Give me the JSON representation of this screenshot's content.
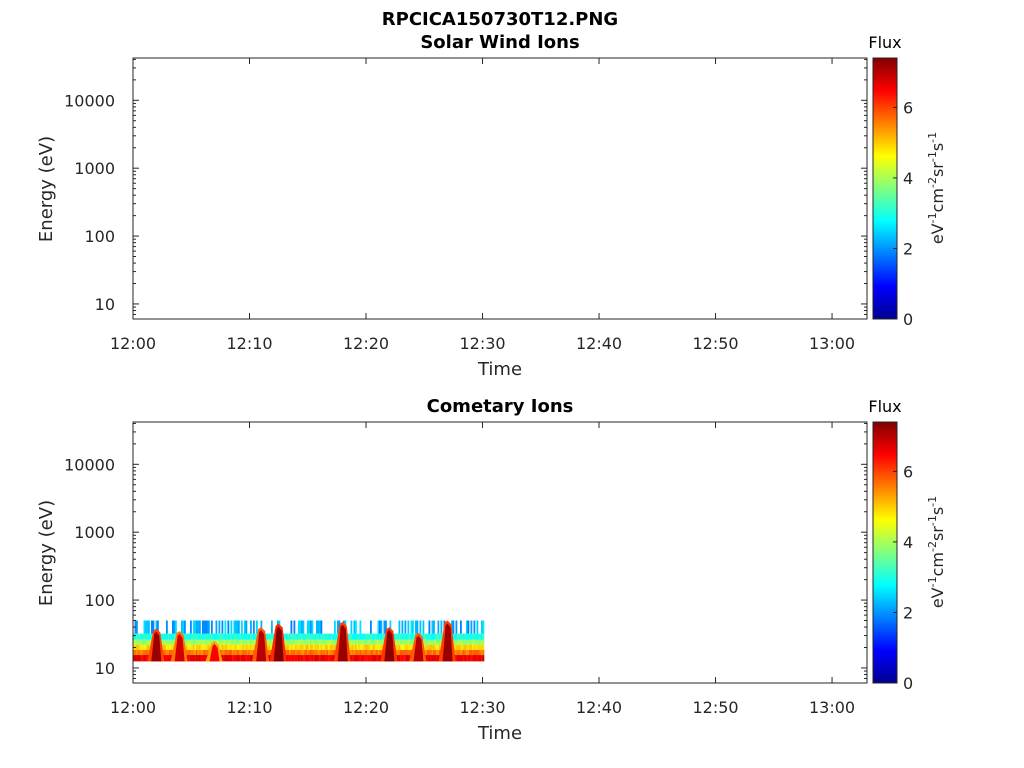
{
  "figure_title": "RPCICA150730T12.PNG",
  "chart_data": [
    {
      "type": "heatmap",
      "title": "Solar Wind Ions",
      "xlabel": "Time",
      "ylabel": "Energy (eV)",
      "y_scale": "log",
      "ylim": [
        6,
        42000
      ],
      "x_ticks": [
        "12:00",
        "12:10",
        "12:20",
        "12:30",
        "12:40",
        "12:50",
        "13:00"
      ],
      "xlim": [
        "12:00",
        "13:03"
      ],
      "y_ticks": [
        10,
        100,
        1000,
        10000
      ],
      "y_tick_labels": [
        "10",
        "100",
        "1000",
        "10000"
      ],
      "colorbar": {
        "title": "Flux",
        "label": "eV-1cm-2sr-1s-1",
        "label_parts": [
          "eV",
          "-1",
          "cm",
          "-2",
          "sr",
          "-1",
          "s",
          "-1"
        ],
        "range": [
          0,
          7.4
        ],
        "ticks": [
          "0",
          "2",
          "4",
          "6"
        ],
        "colormap": "jet"
      },
      "data_coverage": "none",
      "events": []
    },
    {
      "type": "heatmap",
      "title": "Cometary Ions",
      "xlabel": "Time",
      "ylabel": "Energy (eV)",
      "y_scale": "log",
      "ylim": [
        6,
        42000
      ],
      "x_ticks": [
        "12:00",
        "12:10",
        "12:20",
        "12:30",
        "12:40",
        "12:50",
        "13:00"
      ],
      "xlim": [
        "12:00",
        "13:03"
      ],
      "y_ticks": [
        10,
        100,
        1000,
        10000
      ],
      "y_tick_labels": [
        "10",
        "100",
        "1000",
        "10000"
      ],
      "colorbar": {
        "title": "Flux",
        "label": "eV-1cm-2sr-1s-1",
        "label_parts": [
          "eV",
          "-1",
          "cm",
          "-2",
          "sr",
          "-1",
          "s",
          "-1"
        ],
        "range": [
          0,
          7.4
        ],
        "ticks": [
          "0",
          "2",
          "4",
          "6"
        ],
        "colormap": "jet"
      },
      "data_coverage": {
        "start": "12:00",
        "end": "12:30"
      },
      "background_bands": [
        {
          "energy_low": 12.5,
          "energy_high": 15.5,
          "flux": 6.6
        },
        {
          "energy_low": 15.5,
          "energy_high": 18.5,
          "flux": 5.6
        },
        {
          "energy_low": 18.5,
          "energy_high": 22.0,
          "flux": 4.9
        },
        {
          "energy_low": 22.0,
          "energy_high": 26.0,
          "flux": 3.9
        },
        {
          "energy_low": 26.0,
          "energy_high": 32.0,
          "flux": 3.0
        },
        {
          "energy_low": 32.0,
          "energy_high": 50.0,
          "flux": 2.2
        }
      ],
      "events": [
        {
          "time": "12:02",
          "peak_energy": 38,
          "flux": 7.2
        },
        {
          "time": "12:04",
          "peak_energy": 35,
          "flux": 6.8
        },
        {
          "time": "12:07",
          "peak_energy": 25,
          "flux": 6.5
        },
        {
          "time": "12:11",
          "peak_energy": 40,
          "flux": 7.0
        },
        {
          "time": "12:12.5",
          "peak_energy": 45,
          "flux": 7.4
        },
        {
          "time": "12:18",
          "peak_energy": 48,
          "flux": 7.2
        },
        {
          "time": "12:22",
          "peak_energy": 40,
          "flux": 7.3
        },
        {
          "time": "12:24.5",
          "peak_energy": 33,
          "flux": 7.0
        },
        {
          "time": "12:27",
          "peak_energy": 50,
          "flux": 7.2
        }
      ]
    }
  ]
}
